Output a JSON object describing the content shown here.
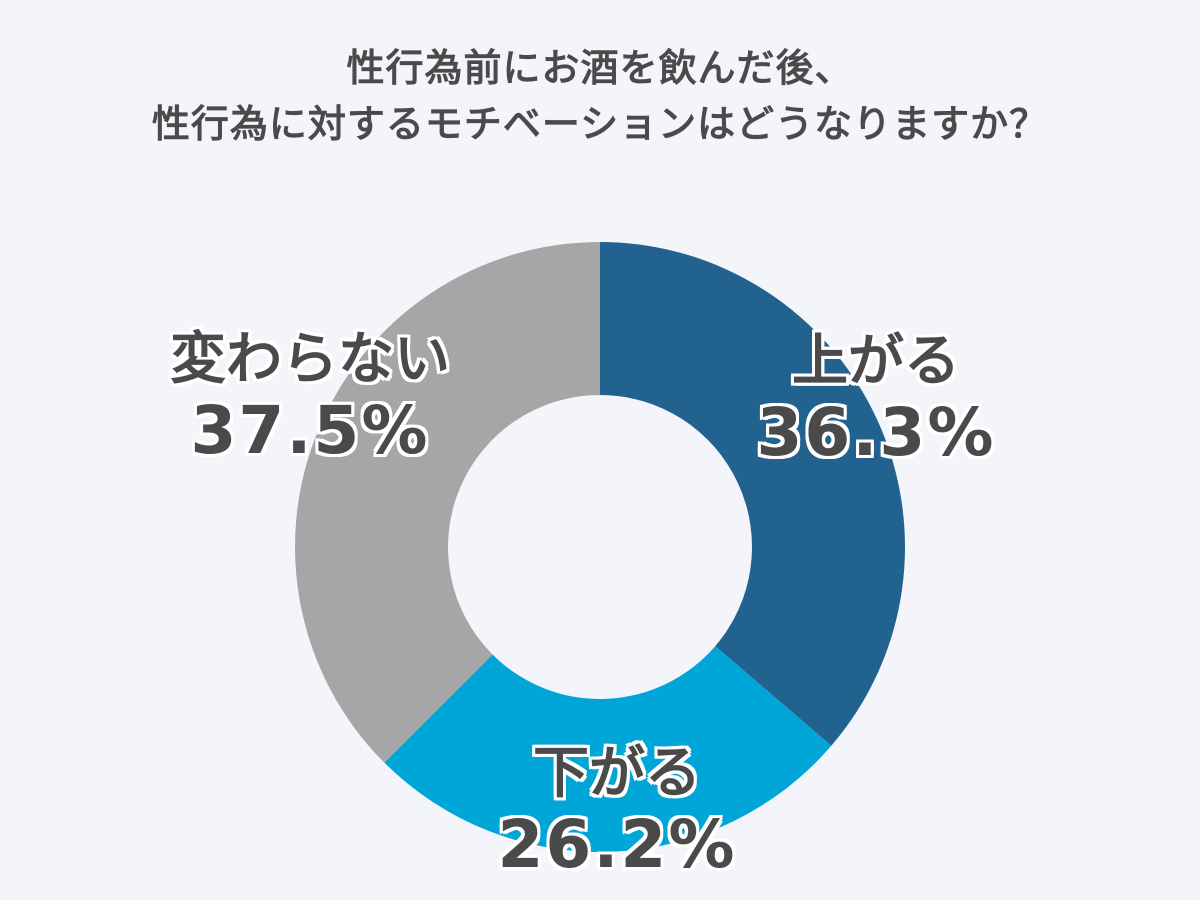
{
  "chart_data": {
    "type": "pie",
    "title_lines": [
      "性行為前にお酒を飲んだ後、",
      "性行為に対するモチベーションはどうなりますか？"
    ],
    "slices": [
      {
        "label": "上がる",
        "value": 36.3,
        "value_text": "36.3%",
        "color": "#22628e"
      },
      {
        "label": "下がる",
        "value": 26.2,
        "value_text": "26.2%",
        "color": "#01a6d8"
      },
      {
        "label": "変わらない",
        "value": 37.5,
        "value_text": "37.5%",
        "color": "#a6a6a6"
      }
    ],
    "donut": true,
    "start": "12 o'clock",
    "direction": "clockwise",
    "legend": "none"
  },
  "colors": {
    "background": "#f3f5fb",
    "text": "#4a4a4a",
    "label_halo": "#ffffff"
  }
}
